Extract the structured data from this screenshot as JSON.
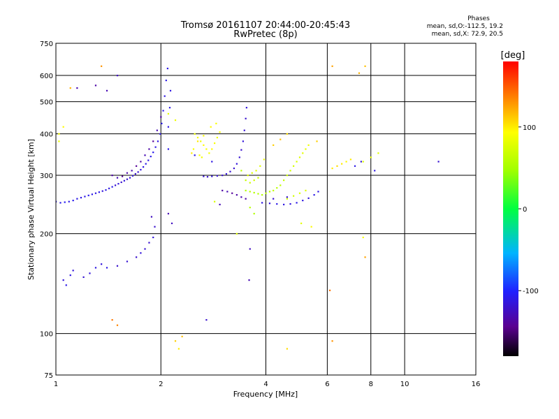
{
  "chart_data": {
    "type": "scatter",
    "title": "Tromsø 20161107 20:44:00-20:45:43",
    "subtitle": "RwPretec (8p)",
    "xlabel": "Frequency [MHz]",
    "ylabel": "Stationary phase Virtual Height [km]",
    "x_scale": "log",
    "y_scale": "log",
    "xlim": [
      1,
      16
    ],
    "ylim": [
      75,
      750
    ],
    "x_ticks": [
      1,
      2,
      4,
      6,
      8,
      10,
      16
    ],
    "x_tick_labels": [
      "1",
      "2",
      "4",
      "6",
      "8",
      "10",
      "16"
    ],
    "y_ticks": [
      75,
      100,
      200,
      300,
      400,
      500,
      600,
      750
    ],
    "y_tick_labels": [
      "75",
      "100",
      "200",
      "300",
      "400",
      "500",
      "600",
      "750"
    ],
    "grid": true,
    "colorbar": {
      "label": "[deg]",
      "range": [
        -180,
        180
      ],
      "ticks": [
        100,
        0,
        -100
      ],
      "tick_labels": [
        "100",
        "0",
        "-100"
      ]
    },
    "stats": {
      "title": "Phases",
      "line1": "mean, sd,O:-112.5, 19.2",
      "line2": "mean, sd,X:  72.9, 20.5"
    },
    "series": [
      {
        "points": [
          [
            1.0,
            250,
            -110
          ],
          [
            1.03,
            248,
            -110
          ],
          [
            1.06,
            249,
            -105
          ],
          [
            1.09,
            250,
            -110
          ],
          [
            1.12,
            252,
            -108
          ],
          [
            1.15,
            255,
            -110
          ],
          [
            1.18,
            257,
            -112
          ],
          [
            1.21,
            259,
            -110
          ],
          [
            1.24,
            261,
            -108
          ],
          [
            1.27,
            263,
            -110
          ],
          [
            1.3,
            265,
            -112
          ],
          [
            1.33,
            267,
            -110
          ],
          [
            1.36,
            269,
            -115
          ],
          [
            1.39,
            271,
            -110
          ],
          [
            1.42,
            274,
            -112
          ],
          [
            1.45,
            277,
            -110
          ],
          [
            1.48,
            280,
            -118
          ],
          [
            1.51,
            283,
            -115
          ],
          [
            1.54,
            286,
            -120
          ],
          [
            1.57,
            289,
            -115
          ],
          [
            1.6,
            292,
            -120
          ],
          [
            1.63,
            295,
            -118
          ],
          [
            1.66,
            299,
            -115
          ],
          [
            1.69,
            303,
            -120
          ],
          [
            1.72,
            307,
            -118
          ],
          [
            1.75,
            312,
            -115
          ],
          [
            1.78,
            318,
            -112
          ],
          [
            1.81,
            325,
            -110
          ],
          [
            1.84,
            333,
            -112
          ],
          [
            1.87,
            342,
            -110
          ],
          [
            1.9,
            352,
            -108
          ],
          [
            1.93,
            365,
            -110
          ],
          [
            1.96,
            380,
            -112
          ],
          [
            1.99,
            400,
            -110
          ],
          [
            2.01,
            430,
            -108
          ],
          [
            2.03,
            470,
            -110
          ],
          [
            2.05,
            520,
            -112
          ],
          [
            2.07,
            580,
            -110
          ],
          [
            2.09,
            630,
            -110
          ],
          [
            1.45,
            300,
            -135
          ],
          [
            1.5,
            295,
            -130
          ],
          [
            1.55,
            298,
            -140
          ],
          [
            1.6,
            305,
            -135
          ],
          [
            1.65,
            310,
            -130
          ],
          [
            1.7,
            320,
            -140
          ],
          [
            1.75,
            330,
            -135
          ],
          [
            1.8,
            345,
            -130
          ],
          [
            1.85,
            360,
            -135
          ],
          [
            1.9,
            380,
            -140
          ],
          [
            1.95,
            410,
            -130
          ],
          [
            2.0,
            450,
            -135
          ],
          [
            1.05,
            145,
            -115
          ],
          [
            1.07,
            140,
            -110
          ],
          [
            1.1,
            150,
            -112
          ],
          [
            1.12,
            155,
            -115
          ],
          [
            1.2,
            148,
            -118
          ],
          [
            1.25,
            152,
            -115
          ],
          [
            1.3,
            158,
            -112
          ],
          [
            1.35,
            162,
            -115
          ],
          [
            1.4,
            158,
            -110
          ],
          [
            1.5,
            160,
            -120
          ],
          [
            1.6,
            165,
            -118
          ],
          [
            1.7,
            170,
            -120
          ],
          [
            1.75,
            175,
            -115
          ],
          [
            1.8,
            180,
            -118
          ],
          [
            1.85,
            188,
            -120
          ],
          [
            1.9,
            195,
            -115
          ],
          [
            1.88,
            225,
            -125
          ],
          [
            1.92,
            210,
            -120
          ],
          [
            2.1,
            360,
            -110
          ],
          [
            2.1,
            420,
            -112
          ],
          [
            2.12,
            480,
            -110
          ],
          [
            2.13,
            540,
            -112
          ],
          [
            2.65,
            298,
            -118
          ],
          [
            2.72,
            297,
            -120
          ],
          [
            2.8,
            298,
            -115
          ],
          [
            2.9,
            299,
            -118
          ],
          [
            3.0,
            300,
            -120
          ],
          [
            3.08,
            303,
            -115
          ],
          [
            3.16,
            308,
            -118
          ],
          [
            3.24,
            315,
            -120
          ],
          [
            3.3,
            325,
            -115
          ],
          [
            3.36,
            340,
            -118
          ],
          [
            3.4,
            358,
            -120
          ],
          [
            3.44,
            380,
            -115
          ],
          [
            3.47,
            410,
            -118
          ],
          [
            3.5,
            445,
            -120
          ],
          [
            3.52,
            480,
            -115
          ],
          [
            3.0,
            270,
            -135
          ],
          [
            3.1,
            268,
            -130
          ],
          [
            3.2,
            265,
            -140
          ],
          [
            3.3,
            262,
            -135
          ],
          [
            3.4,
            258,
            -130
          ],
          [
            3.5,
            255,
            -135
          ],
          [
            3.9,
            248,
            -112
          ],
          [
            4.1,
            247,
            -115
          ],
          [
            4.3,
            246,
            -110
          ],
          [
            4.5,
            245,
            -112
          ],
          [
            4.7,
            246,
            -115
          ],
          [
            4.9,
            248,
            -110
          ],
          [
            5.1,
            252,
            -112
          ],
          [
            5.3,
            256,
            -115
          ],
          [
            5.5,
            262,
            -110
          ],
          [
            5.65,
            268,
            -112
          ],
          [
            4.2,
            255,
            -120
          ],
          [
            4.6,
            258,
            -118
          ],
          [
            2.1,
            230,
            -130
          ],
          [
            2.15,
            215,
            -125
          ],
          [
            2.95,
            245,
            -130
          ],
          [
            3.6,
            180,
            -125
          ],
          [
            3.58,
            145,
            -130
          ],
          [
            2.7,
            110,
            -120
          ],
          [
            2.5,
            345,
            -110
          ],
          [
            2.8,
            330,
            -112
          ],
          [
            1.15,
            550,
            -130
          ],
          [
            1.3,
            560,
            -135
          ],
          [
            1.4,
            540,
            -130
          ],
          [
            1.5,
            600,
            -125
          ],
          [
            7.2,
            320,
            -110
          ],
          [
            7.5,
            330,
            -115
          ],
          [
            8.2,
            310,
            -112
          ],
          [
            12.5,
            330,
            -118
          ]
        ]
      },
      {
        "points": [
          [
            2.55,
            390,
            90
          ],
          [
            2.6,
            380,
            85
          ],
          [
            2.65,
            370,
            95
          ],
          [
            2.7,
            360,
            90
          ],
          [
            2.75,
            350,
            88
          ],
          [
            2.8,
            360,
            95
          ],
          [
            2.85,
            375,
            90
          ],
          [
            2.9,
            390,
            85
          ],
          [
            2.95,
            405,
            92
          ],
          [
            2.58,
            345,
            90
          ],
          [
            2.62,
            340,
            88
          ],
          [
            2.78,
            420,
            95
          ],
          [
            2.88,
            430,
            90
          ],
          [
            2.5,
            400,
            85
          ],
          [
            3.55,
            300,
            80
          ],
          [
            3.65,
            305,
            75
          ],
          [
            3.75,
            310,
            80
          ],
          [
            3.85,
            320,
            78
          ],
          [
            3.95,
            335,
            82
          ],
          [
            3.6,
            285,
            70
          ],
          [
            3.7,
            290,
            72
          ],
          [
            3.8,
            295,
            68
          ],
          [
            3.5,
            290,
            65
          ],
          [
            3.5,
            270,
            55
          ],
          [
            3.6,
            268,
            60
          ],
          [
            3.7,
            266,
            55
          ],
          [
            3.8,
            264,
            58
          ],
          [
            3.9,
            262,
            55
          ],
          [
            4.0,
            265,
            58
          ],
          [
            4.1,
            268,
            60
          ],
          [
            4.2,
            270,
            62
          ],
          [
            4.3,
            275,
            60
          ],
          [
            4.4,
            280,
            62
          ],
          [
            4.5,
            290,
            65
          ],
          [
            4.6,
            300,
            68
          ],
          [
            4.7,
            310,
            70
          ],
          [
            4.8,
            320,
            72
          ],
          [
            4.9,
            330,
            75
          ],
          [
            5.0,
            340,
            78
          ],
          [
            5.1,
            350,
            80
          ],
          [
            5.2,
            360,
            82
          ],
          [
            5.3,
            370,
            85
          ],
          [
            4.6,
            255,
            70
          ],
          [
            4.8,
            260,
            72
          ],
          [
            5.0,
            265,
            75
          ],
          [
            5.2,
            270,
            78
          ],
          [
            6.2,
            315,
            100
          ],
          [
            6.4,
            320,
            105
          ],
          [
            6.6,
            325,
            100
          ],
          [
            6.8,
            330,
            95
          ],
          [
            7.0,
            335,
            100
          ],
          [
            7.6,
            330,
            75
          ],
          [
            8.0,
            340,
            80
          ],
          [
            8.4,
            350,
            78
          ],
          [
            2.55,
            380,
            100
          ],
          [
            2.65,
            395,
            95
          ],
          [
            2.45,
            350,
            100
          ],
          [
            2.48,
            360,
            90
          ],
          [
            3.4,
            310,
            60
          ],
          [
            3.6,
            240,
            58
          ],
          [
            3.7,
            230,
            55
          ],
          [
            4.2,
            370,
            110
          ],
          [
            4.4,
            385,
            115
          ],
          [
            4.6,
            400,
            105
          ],
          [
            5.6,
            380,
            110
          ],
          [
            7.7,
            640,
            115
          ],
          [
            7.4,
            610,
            120
          ],
          [
            6.2,
            640,
            125
          ],
          [
            1.35,
            640,
            130
          ],
          [
            1.1,
            550,
            120
          ],
          [
            2.2,
            95,
            110
          ],
          [
            2.25,
            90,
            100
          ],
          [
            2.3,
            98,
            115
          ],
          [
            4.6,
            90,
            105
          ],
          [
            6.2,
            95,
            130
          ],
          [
            7.6,
            195,
            90
          ],
          [
            7.7,
            170,
            125
          ],
          [
            6.1,
            135,
            140
          ],
          [
            1.45,
            110,
            140
          ],
          [
            1.5,
            106,
            135
          ],
          [
            1.02,
            400,
            90
          ],
          [
            1.05,
            420,
            95
          ],
          [
            1.02,
            380,
            85
          ],
          [
            2.1,
            460,
            80
          ],
          [
            2.2,
            440,
            85
          ],
          [
            3.3,
            200,
            80
          ],
          [
            2.85,
            250,
            75
          ],
          [
            5.05,
            215,
            80
          ],
          [
            5.4,
            210,
            95
          ]
        ]
      }
    ]
  }
}
